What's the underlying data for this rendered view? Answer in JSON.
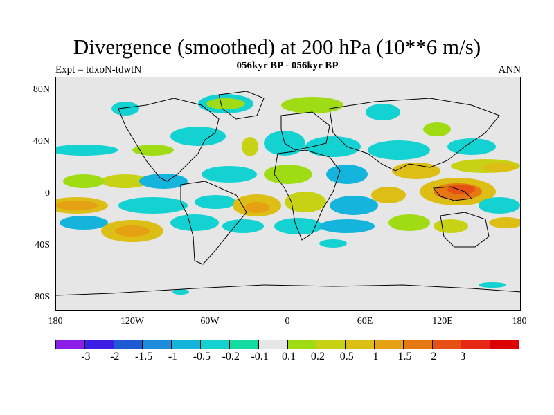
{
  "title": "Divergence (smoothed) at 200 hPa (10**6 m/s)",
  "subtitle": "056kyr BP - 056kyr BP",
  "left_label": "Expt = tdxoN-tdwtN",
  "right_label": "ANN",
  "lat_labels": [
    "80N",
    "40N",
    "0",
    "40S",
    "80S"
  ],
  "lon_labels": [
    "180",
    "120W",
    "60W",
    "0",
    "60E",
    "120E",
    "180"
  ],
  "colorbar": {
    "colors": [
      "#8b1ee6",
      "#3c1ee6",
      "#1e5ad2",
      "#1e8cdc",
      "#14b4dc",
      "#14d2d2",
      "#14dca0",
      "#e6e6e6",
      "#a0dc14",
      "#c8d214",
      "#dcbe14",
      "#e6a014",
      "#e67814",
      "#e65014",
      "#e62814",
      "#dc0000"
    ],
    "labels": [
      "-3",
      "-2",
      "-1.5",
      "-1",
      "-0.5",
      "-0.2",
      "-0.1",
      "0.1",
      "0.2",
      "0.5",
      "1",
      "1.5",
      "2",
      "3"
    ]
  },
  "map_colors": {
    "background": "#e6e6e6",
    "coast": "#000000"
  }
}
